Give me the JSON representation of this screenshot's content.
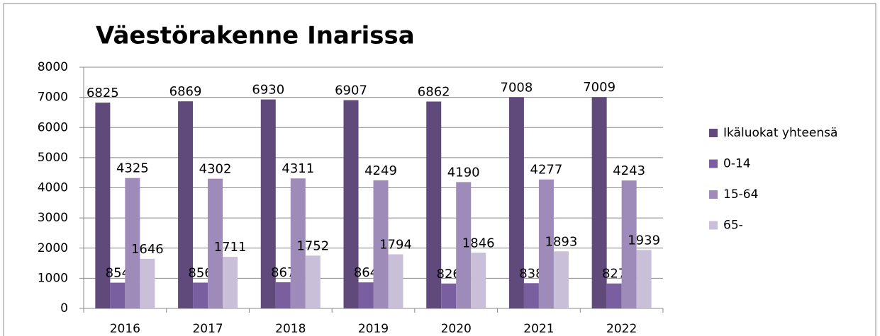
{
  "chart_data": {
    "type": "bar",
    "title": "Väestörakenne Inarissa",
    "categories": [
      "2016",
      "2017",
      "2018",
      "2019",
      "2020",
      "2021",
      "2022"
    ],
    "series": [
      {
        "name": "Ikäluokat yhteensä",
        "color": "#604a7b",
        "values": [
          6825,
          6869,
          6930,
          6907,
          6862,
          7008,
          7009
        ]
      },
      {
        "name": "0-14",
        "color": "#7a5fa0",
        "values": [
          854,
          856,
          867,
          864,
          826,
          838,
          827
        ]
      },
      {
        "name": "15-64",
        "color": "#9e8bb9",
        "values": [
          4325,
          4302,
          4311,
          4249,
          4190,
          4277,
          4243
        ]
      },
      {
        "name": "65-",
        "color": "#c9bfd9",
        "values": [
          1646,
          1711,
          1752,
          1794,
          1846,
          1893,
          1939
        ]
      }
    ],
    "ylim": [
      0,
      8000
    ],
    "yticks": [
      0,
      1000,
      2000,
      3000,
      4000,
      5000,
      6000,
      7000,
      8000
    ],
    "grid": true,
    "legend": "right"
  }
}
